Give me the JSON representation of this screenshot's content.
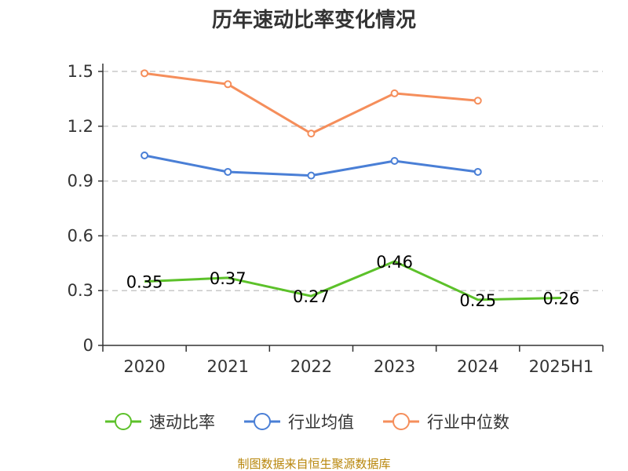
{
  "chart_data": {
    "type": "line",
    "title": "历年速动比率变化情况",
    "categories": [
      "2020",
      "2021",
      "2022",
      "2023",
      "2024",
      "2025H1"
    ],
    "ylim": [
      0,
      1.5
    ],
    "yticks": [
      "0",
      "0.3",
      "0.6",
      "0.9",
      "1.2",
      "1.5"
    ],
    "ytick_values": [
      0,
      0.3,
      0.6,
      0.9,
      1.2,
      1.5
    ],
    "grid": true,
    "legend_position": "bottom",
    "series": [
      {
        "name": "速动比率",
        "color": "#5cc12a",
        "values": [
          0.35,
          0.37,
          0.27,
          0.46,
          0.25,
          0.26
        ],
        "point_labels": [
          "0.35",
          "0.37",
          "0.27",
          "0.46",
          "0.25",
          "0.26"
        ],
        "show_markers": false
      },
      {
        "name": "行业均值",
        "color": "#4a7fd6",
        "values": [
          1.04,
          0.95,
          0.93,
          1.01,
          0.95,
          null
        ],
        "show_markers": true
      },
      {
        "name": "行业中位数",
        "color": "#f58e5b",
        "values": [
          1.49,
          1.43,
          1.16,
          1.38,
          1.34,
          null
        ],
        "show_markers": true
      }
    ]
  },
  "source_note": "制图数据来自恒生聚源数据库"
}
